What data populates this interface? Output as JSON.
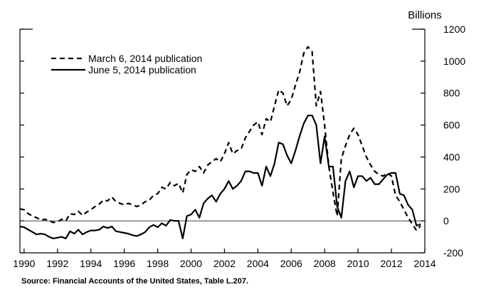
{
  "chart_data": {
    "type": "line",
    "unit_label": "Billions",
    "source": "Source: Financial Accounts of the United States, Table L.207.",
    "xlim": [
      1989.75,
      2014
    ],
    "ylim": [
      -200,
      1200
    ],
    "x_ticks": [
      1990,
      1992,
      1994,
      1996,
      1998,
      2000,
      2002,
      2004,
      2006,
      2008,
      2010,
      2012,
      2014
    ],
    "x_tick_labels": [
      "1990",
      "1992",
      "1994",
      "1996",
      "1998",
      "2000",
      "2002",
      "2004",
      "2006",
      "2008",
      "2010",
      "2012",
      "2014"
    ],
    "y_ticks": [
      -200,
      0,
      200,
      400,
      600,
      800,
      1000,
      1200
    ],
    "y_tick_labels": [
      "-200",
      "0",
      "200",
      "400",
      "600",
      "800",
      "1000",
      "1200"
    ],
    "zero_line": true,
    "grid": false,
    "legend_position": "top-left",
    "series": [
      {
        "name": "March 6, 2014 publication",
        "style": "dashed",
        "points": [
          [
            1989.75,
            75
          ],
          [
            1990.0,
            70
          ],
          [
            1990.25,
            45
          ],
          [
            1990.5,
            30
          ],
          [
            1990.75,
            20
          ],
          [
            1991.0,
            5
          ],
          [
            1991.25,
            10
          ],
          [
            1991.5,
            0
          ],
          [
            1991.75,
            -10
          ],
          [
            1992.0,
            -5
          ],
          [
            1992.25,
            10
          ],
          [
            1992.5,
            0
          ],
          [
            1992.75,
            45
          ],
          [
            1993.0,
            40
          ],
          [
            1993.25,
            60
          ],
          [
            1993.5,
            35
          ],
          [
            1993.75,
            55
          ],
          [
            1994.0,
            70
          ],
          [
            1994.25,
            90
          ],
          [
            1994.5,
            105
          ],
          [
            1994.75,
            130
          ],
          [
            1995.0,
            125
          ],
          [
            1995.25,
            150
          ],
          [
            1995.5,
            120
          ],
          [
            1995.75,
            110
          ],
          [
            1996.0,
            100
          ],
          [
            1996.25,
            110
          ],
          [
            1996.5,
            100
          ],
          [
            1996.75,
            90
          ],
          [
            1997.0,
            100
          ],
          [
            1997.25,
            120
          ],
          [
            1997.5,
            130
          ],
          [
            1997.75,
            160
          ],
          [
            1998.0,
            170
          ],
          [
            1998.25,
            210
          ],
          [
            1998.5,
            200
          ],
          [
            1998.75,
            240
          ],
          [
            1999.0,
            220
          ],
          [
            1999.25,
            235
          ],
          [
            1999.5,
            175
          ],
          [
            1999.75,
            290
          ],
          [
            2000.0,
            320
          ],
          [
            2000.25,
            310
          ],
          [
            2000.5,
            340
          ],
          [
            2000.75,
            300
          ],
          [
            2001.0,
            350
          ],
          [
            2001.25,
            370
          ],
          [
            2001.5,
            390
          ],
          [
            2001.75,
            370
          ],
          [
            2002.0,
            420
          ],
          [
            2002.25,
            490
          ],
          [
            2002.5,
            420
          ],
          [
            2002.75,
            440
          ],
          [
            2003.0,
            450
          ],
          [
            2003.25,
            520
          ],
          [
            2003.5,
            560
          ],
          [
            2003.75,
            600
          ],
          [
            2004.0,
            620
          ],
          [
            2004.25,
            540
          ],
          [
            2004.5,
            640
          ],
          [
            2004.75,
            620
          ],
          [
            2005.0,
            720
          ],
          [
            2005.25,
            820
          ],
          [
            2005.5,
            800
          ],
          [
            2005.75,
            720
          ],
          [
            2006.0,
            760
          ],
          [
            2006.25,
            850
          ],
          [
            2006.5,
            930
          ],
          [
            2006.75,
            1050
          ],
          [
            2007.0,
            1090
          ],
          [
            2007.25,
            1060
          ],
          [
            2007.5,
            720
          ],
          [
            2007.75,
            810
          ],
          [
            2008.0,
            600
          ],
          [
            2008.25,
            340
          ],
          [
            2008.5,
            180
          ],
          [
            2008.75,
            30
          ],
          [
            2009.0,
            390
          ],
          [
            2009.25,
            470
          ],
          [
            2009.5,
            540
          ],
          [
            2009.75,
            580
          ],
          [
            2010.0,
            540
          ],
          [
            2010.25,
            470
          ],
          [
            2010.5,
            400
          ],
          [
            2010.75,
            350
          ],
          [
            2011.0,
            310
          ],
          [
            2011.25,
            290
          ],
          [
            2011.5,
            280
          ],
          [
            2011.75,
            300
          ],
          [
            2012.0,
            280
          ],
          [
            2012.25,
            160
          ],
          [
            2012.5,
            120
          ],
          [
            2012.75,
            70
          ],
          [
            2013.0,
            20
          ],
          [
            2013.25,
            -20
          ],
          [
            2013.5,
            -60
          ],
          [
            2013.75,
            -30
          ]
        ]
      },
      {
        "name": "June 5, 2014 publication",
        "style": "solid",
        "points": [
          [
            1989.75,
            -35
          ],
          [
            1990.0,
            -40
          ],
          [
            1990.25,
            -55
          ],
          [
            1990.5,
            -70
          ],
          [
            1990.75,
            -85
          ],
          [
            1991.0,
            -80
          ],
          [
            1991.25,
            -85
          ],
          [
            1991.5,
            -100
          ],
          [
            1991.75,
            -110
          ],
          [
            1992.0,
            -105
          ],
          [
            1992.25,
            -100
          ],
          [
            1992.5,
            -110
          ],
          [
            1992.75,
            -65
          ],
          [
            1993.0,
            -80
          ],
          [
            1993.25,
            -55
          ],
          [
            1993.5,
            -85
          ],
          [
            1993.75,
            -70
          ],
          [
            1994.0,
            -60
          ],
          [
            1994.25,
            -60
          ],
          [
            1994.5,
            -55
          ],
          [
            1994.75,
            -35
          ],
          [
            1995.0,
            -45
          ],
          [
            1995.25,
            -35
          ],
          [
            1995.5,
            -65
          ],
          [
            1995.75,
            -70
          ],
          [
            1996.0,
            -75
          ],
          [
            1996.25,
            -80
          ],
          [
            1996.5,
            -90
          ],
          [
            1996.75,
            -95
          ],
          [
            1997.0,
            -85
          ],
          [
            1997.25,
            -70
          ],
          [
            1997.5,
            -40
          ],
          [
            1997.75,
            -25
          ],
          [
            1998.0,
            -40
          ],
          [
            1998.25,
            -15
          ],
          [
            1998.5,
            -30
          ],
          [
            1998.75,
            5
          ],
          [
            1999.0,
            0
          ],
          [
            1999.25,
            0
          ],
          [
            1999.5,
            -110
          ],
          [
            1999.75,
            30
          ],
          [
            2000.0,
            40
          ],
          [
            2000.25,
            70
          ],
          [
            2000.5,
            20
          ],
          [
            2000.75,
            110
          ],
          [
            2001.0,
            140
          ],
          [
            2001.25,
            160
          ],
          [
            2001.5,
            120
          ],
          [
            2001.75,
            170
          ],
          [
            2002.0,
            200
          ],
          [
            2002.25,
            250
          ],
          [
            2002.5,
            200
          ],
          [
            2002.75,
            220
          ],
          [
            2003.0,
            250
          ],
          [
            2003.25,
            310
          ],
          [
            2003.5,
            310
          ],
          [
            2003.75,
            300
          ],
          [
            2004.0,
            300
          ],
          [
            2004.25,
            220
          ],
          [
            2004.5,
            340
          ],
          [
            2004.75,
            280
          ],
          [
            2005.0,
            360
          ],
          [
            2005.25,
            490
          ],
          [
            2005.5,
            480
          ],
          [
            2005.75,
            410
          ],
          [
            2006.0,
            360
          ],
          [
            2006.25,
            440
          ],
          [
            2006.5,
            530
          ],
          [
            2006.75,
            610
          ],
          [
            2007.0,
            660
          ],
          [
            2007.25,
            660
          ],
          [
            2007.5,
            600
          ],
          [
            2007.75,
            360
          ],
          [
            2008.0,
            530
          ],
          [
            2008.25,
            340
          ],
          [
            2008.5,
            340
          ],
          [
            2008.75,
            90
          ],
          [
            2009.0,
            20
          ],
          [
            2009.25,
            250
          ],
          [
            2009.5,
            310
          ],
          [
            2009.75,
            210
          ],
          [
            2010.0,
            280
          ],
          [
            2010.25,
            280
          ],
          [
            2010.5,
            250
          ],
          [
            2010.75,
            270
          ],
          [
            2011.0,
            230
          ],
          [
            2011.25,
            230
          ],
          [
            2011.5,
            260
          ],
          [
            2011.75,
            290
          ],
          [
            2012.0,
            300
          ],
          [
            2012.25,
            300
          ],
          [
            2012.5,
            170
          ],
          [
            2012.75,
            160
          ],
          [
            2013.0,
            100
          ],
          [
            2013.25,
            70
          ],
          [
            2013.5,
            -30
          ],
          [
            2013.75,
            -20
          ]
        ]
      }
    ]
  }
}
